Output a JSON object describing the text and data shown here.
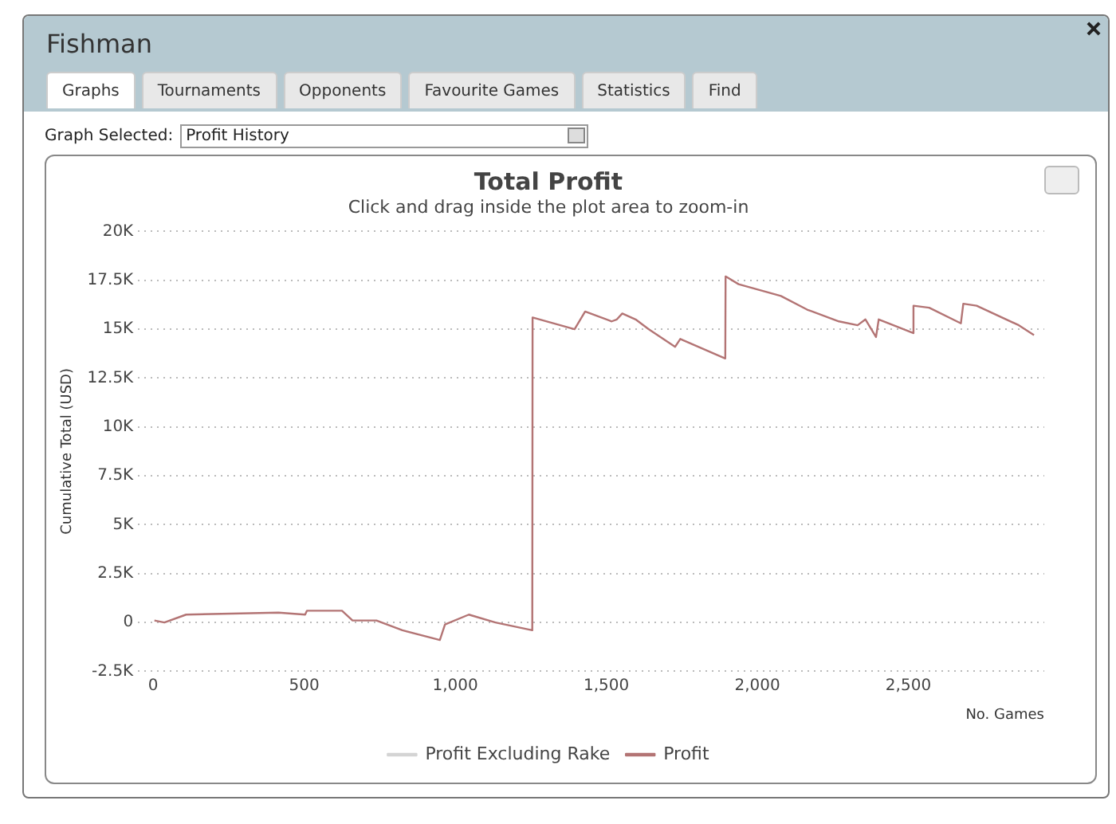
{
  "chart_data": {
    "type": "line",
    "title": "Total Profit",
    "subtitle": "Click and drag inside the plot area to zoom-in",
    "xlabel": "No. Games",
    "ylabel": "Cumulative Total (USD)",
    "annotations": [
      "Fishman",
      "Graphs",
      "Tournaments",
      "Opponents",
      "Favourite Games",
      "Statistics",
      "Find",
      "Graph Selected:",
      "Profit History"
    ],
    "x": [
      4,
      37,
      109,
      415,
      503,
      509,
      625,
      660,
      739,
      825,
      949,
      966,
      1045,
      1133,
      1255,
      1256,
      1395,
      1430,
      1518,
      1535,
      1553,
      1597,
      1640,
      1728,
      1745,
      1894,
      1895,
      1938,
      2078,
      2165,
      2270,
      2332,
      2358,
      2393,
      2402,
      2516,
      2517,
      2569,
      2674,
      2682,
      2726,
      2866,
      2916
    ],
    "series": [
      {
        "name": "Profit Excluding Rake",
        "color": "#d4d4d4",
        "values": [
          null,
          null,
          null,
          null,
          null,
          null,
          null,
          null,
          null,
          null,
          null,
          null,
          null,
          null,
          null,
          null,
          null,
          null,
          null,
          null,
          null,
          null,
          null,
          null,
          null,
          null,
          null,
          null,
          null,
          null,
          null,
          null,
          null,
          null,
          null,
          null,
          null,
          null,
          null,
          null,
          null,
          null,
          null
        ]
      },
      {
        "name": "Profit",
        "color": "#b37474",
        "values": [
          100,
          0,
          400,
          500,
          400,
          600,
          600,
          100,
          100,
          -400,
          -900,
          -100,
          400,
          0,
          -400,
          15600,
          15000,
          15900,
          15400,
          15500,
          15800,
          15500,
          15000,
          14100,
          14500,
          13500,
          17700,
          17300,
          16700,
          16000,
          15400,
          15200,
          15500,
          14600,
          15500,
          14800,
          16200,
          16100,
          15300,
          16300,
          16200,
          15200,
          14700
        ]
      }
    ],
    "xlim": [
      -50,
      2950
    ],
    "xticks": [
      {
        "value": 0,
        "label": "0"
      },
      {
        "value": 500,
        "label": "500"
      },
      {
        "value": 1000,
        "label": "1,000"
      },
      {
        "value": 1500,
        "label": "1,500"
      },
      {
        "value": 2000,
        "label": "2,000"
      },
      {
        "value": 2500,
        "label": "2,500"
      }
    ],
    "ylim": [
      -2500,
      20000
    ],
    "yticks": [
      {
        "value": -2500,
        "label": "-2.5K"
      },
      {
        "value": 0,
        "label": "0"
      },
      {
        "value": 2500,
        "label": "2.5K"
      },
      {
        "value": 5000,
        "label": "5K"
      },
      {
        "value": 7500,
        "label": "7.5K"
      },
      {
        "value": 10000,
        "label": "10K"
      },
      {
        "value": 12500,
        "label": "12.5K"
      },
      {
        "value": 15000,
        "label": "15K"
      },
      {
        "value": 17500,
        "label": "17.5K"
      },
      {
        "value": 20000,
        "label": "20K"
      }
    ],
    "grid": "y",
    "legend": "bottom",
    "marker": "none",
    "line_style": "solid"
  }
}
